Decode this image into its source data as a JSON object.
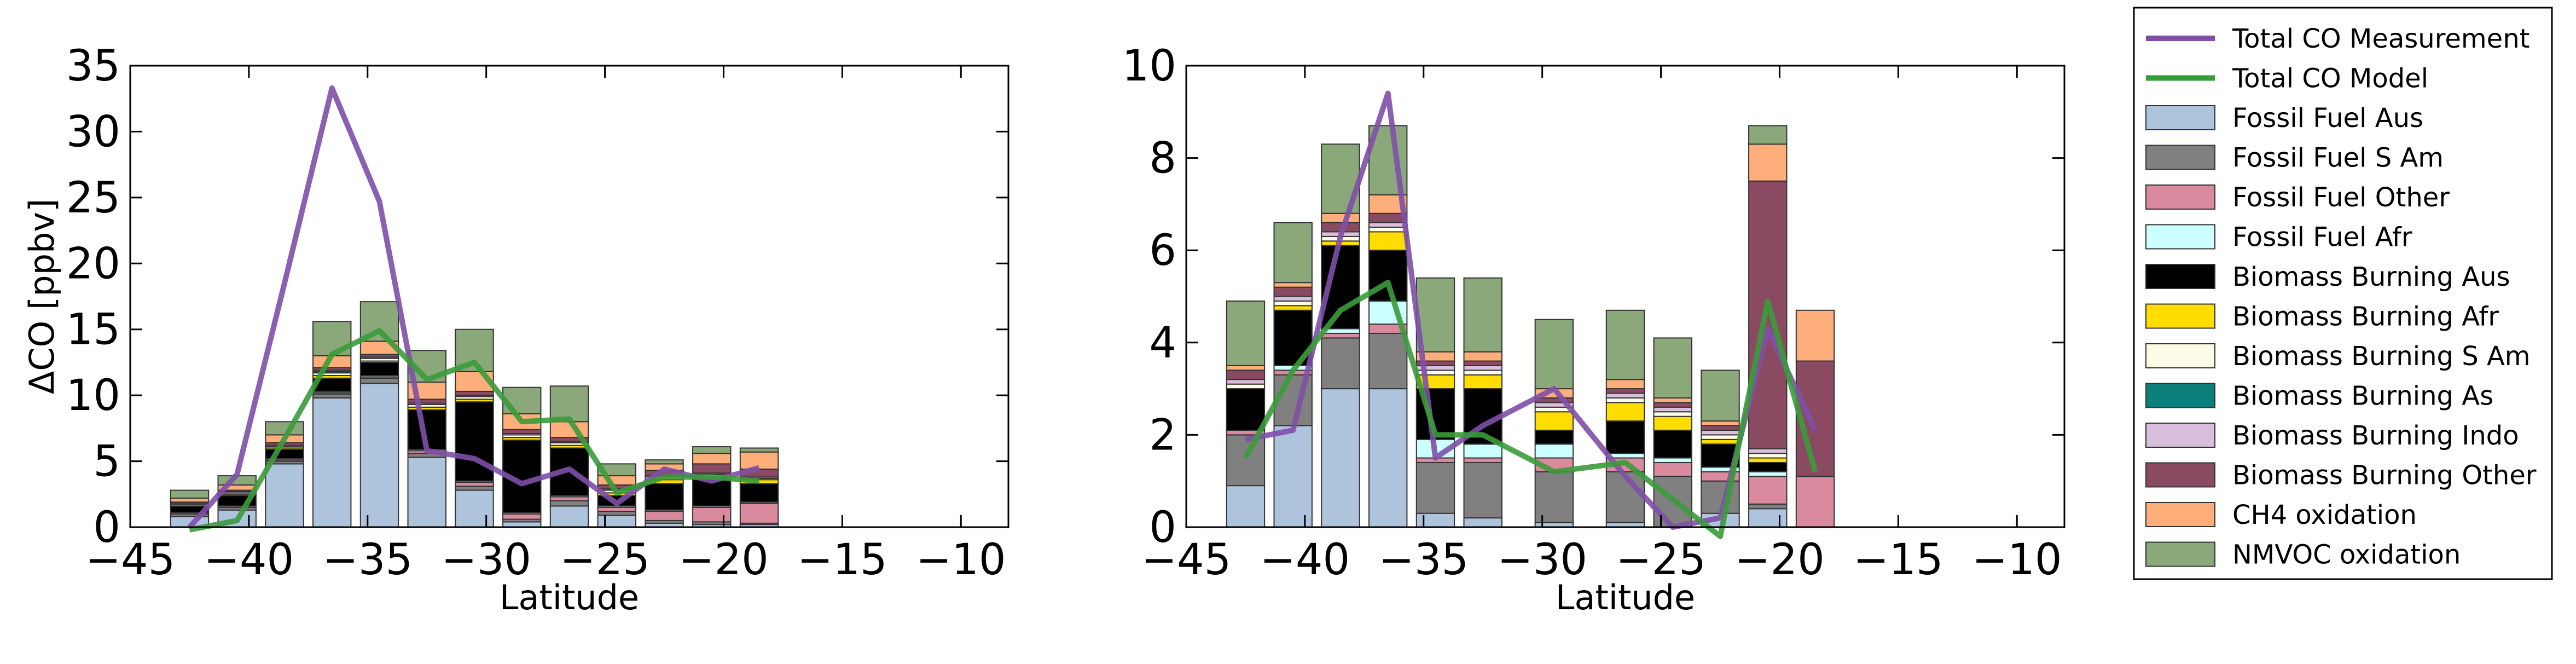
{
  "chart_data": [
    {
      "type": "bar",
      "xlabel": "Latitude",
      "ylabel": "ΔCO [ppbv]",
      "xlim": [
        -45,
        -8
      ],
      "ylim": [
        0,
        35
      ],
      "xticks": [
        "−45",
        "−40",
        "−35",
        "−30",
        "−25",
        "−20",
        "−15",
        "−10"
      ],
      "xtick_values": [
        -45,
        -40,
        -35,
        -30,
        -25,
        -20,
        -15,
        -10
      ],
      "yticks": [
        "0",
        "5",
        "10",
        "15",
        "20",
        "25",
        "30",
        "35"
      ],
      "ytick_values": [
        0,
        5,
        10,
        15,
        20,
        25,
        30,
        35
      ],
      "x": [
        -42.5,
        -40.5,
        -38.5,
        -36.5,
        -34.5,
        -32.5,
        -30.5,
        -28.5,
        -26.5,
        -24.5,
        -22.5,
        -20.5,
        -18.5
      ],
      "series": [
        {
          "name": "Fossil Fuel Aus",
          "values": [
            0.8,
            1.3,
            4.8,
            9.8,
            10.9,
            5.3,
            2.8,
            0.4,
            1.6,
            0.9,
            0.3,
            0.2,
            0.2
          ]
        },
        {
          "name": "Fossil Fuel S Am",
          "values": [
            0.2,
            0.2,
            0.2,
            0.3,
            0.4,
            0.3,
            0.3,
            0.2,
            0.4,
            0.3,
            0.2,
            0.2,
            0.1
          ]
        },
        {
          "name": "Fossil Fuel Other",
          "values": [
            0.1,
            0.1,
            0.1,
            0.1,
            0.1,
            0.2,
            0.3,
            0.4,
            0.3,
            0.3,
            0.7,
            1.1,
            1.5
          ]
        },
        {
          "name": "Fossil Fuel Afr",
          "values": [
            0.0,
            0.0,
            0.1,
            0.1,
            0.1,
            0.1,
            0.1,
            0.1,
            0.1,
            0.1,
            0.1,
            0.1,
            0.1
          ]
        },
        {
          "name": "Biomass Burning Aus",
          "values": [
            0.5,
            0.8,
            0.7,
            1.0,
            1.0,
            3.0,
            6.0,
            5.5,
            3.6,
            0.8,
            2.0,
            2.0,
            1.4
          ]
        },
        {
          "name": "Biomass Burning Afr",
          "values": [
            0.1,
            0.1,
            0.1,
            0.2,
            0.1,
            0.2,
            0.2,
            0.2,
            0.2,
            0.2,
            0.3,
            0.2,
            0.3
          ]
        },
        {
          "name": "Biomass Burning S Am",
          "values": [
            0.1,
            0.1,
            0.1,
            0.2,
            0.2,
            0.2,
            0.2,
            0.2,
            0.2,
            0.2,
            0.2,
            0.2,
            0.1
          ]
        },
        {
          "name": "Biomass Burning As",
          "values": [
            0.0,
            0.0,
            0.0,
            0.1,
            0.0,
            0.0,
            0.0,
            0.0,
            0.0,
            0.0,
            0.0,
            0.0,
            0.0
          ]
        },
        {
          "name": "Biomass Burning Indo",
          "values": [
            0.0,
            0.1,
            0.1,
            0.1,
            0.1,
            0.1,
            0.1,
            0.1,
            0.1,
            0.1,
            0.1,
            0.1,
            0.1
          ]
        },
        {
          "name": "Biomass Burning Other",
          "values": [
            0.1,
            0.1,
            0.2,
            0.2,
            0.2,
            0.3,
            0.3,
            0.3,
            0.3,
            0.3,
            0.4,
            0.7,
            0.6
          ]
        },
        {
          "name": "CH4 oxidation",
          "values": [
            0.3,
            0.4,
            0.6,
            0.9,
            1.0,
            1.3,
            1.5,
            1.2,
            1.2,
            0.7,
            0.5,
            0.8,
            1.3
          ]
        },
        {
          "name": "NMVOC oxidation",
          "values": [
            0.6,
            0.7,
            1.0,
            2.6,
            3.0,
            2.4,
            3.2,
            2.0,
            2.7,
            0.9,
            0.3,
            0.5,
            0.3
          ]
        }
      ],
      "lines": [
        {
          "name": "Total CO Measurement",
          "x": [
            -42.5,
            -40.5,
            -38.5,
            -36.5,
            -34.5,
            -32.5,
            -30.5,
            -28.5,
            -26.5,
            -24.5,
            -22.5,
            -20.5,
            -18.5
          ],
          "values": [
            0.0,
            4.0,
            18.5,
            33.3,
            24.7,
            5.8,
            5.2,
            3.3,
            4.4,
            1.8,
            4.4,
            3.5,
            4.5
          ]
        },
        {
          "name": "Total CO Model",
          "x": [
            -42.5,
            -40.5,
            -38.5,
            -36.5,
            -34.5,
            -32.5,
            -30.5,
            -28.5,
            -26.5,
            -24.5,
            -22.5,
            -20.5,
            -18.5
          ],
          "values": [
            -0.2,
            0.5,
            6.7,
            13.1,
            14.9,
            11.2,
            12.5,
            8.0,
            8.2,
            2.6,
            3.8,
            3.8,
            3.5
          ]
        }
      ]
    },
    {
      "type": "bar",
      "xlabel": "Latitude",
      "ylabel": "",
      "xlim": [
        -45,
        -8
      ],
      "ylim": [
        0,
        10
      ],
      "xticks": [
        "−45",
        "−40",
        "−35",
        "−30",
        "−25",
        "−20",
        "−15",
        "−10"
      ],
      "xtick_values": [
        -45,
        -40,
        -35,
        -30,
        -25,
        -20,
        -15,
        -10
      ],
      "yticks": [
        "0",
        "2",
        "4",
        "6",
        "8",
        "10"
      ],
      "ytick_values": [
        0,
        2,
        4,
        6,
        8,
        10
      ],
      "x": [
        -42.5,
        -40.5,
        -38.5,
        -36.5,
        -34.5,
        -32.5,
        -29.5,
        -26.5,
        -24.5,
        -22.5,
        -20.5,
        -18.5
      ],
      "series": [
        {
          "name": "Fossil Fuel Aus",
          "values": [
            0.9,
            2.2,
            3.0,
            3.0,
            0.3,
            0.2,
            0.1,
            0.1,
            0.0,
            0.3,
            0.4,
            0.0
          ]
        },
        {
          "name": "Fossil Fuel S Am",
          "values": [
            1.1,
            1.1,
            1.1,
            1.2,
            1.1,
            1.2,
            1.1,
            1.1,
            1.1,
            0.7,
            0.1,
            0.0
          ]
        },
        {
          "name": "Fossil Fuel Other",
          "values": [
            0.1,
            0.1,
            0.1,
            0.2,
            0.1,
            0.1,
            0.3,
            0.3,
            0.3,
            0.2,
            0.6,
            1.1
          ]
        },
        {
          "name": "Fossil Fuel Afr",
          "values": [
            0.0,
            0.1,
            0.1,
            0.5,
            0.4,
            0.3,
            0.3,
            0.1,
            0.1,
            0.1,
            0.1,
            0.0
          ]
        },
        {
          "name": "Biomass Burning Aus",
          "values": [
            0.9,
            1.2,
            1.8,
            1.1,
            1.1,
            1.2,
            0.3,
            0.7,
            0.6,
            0.5,
            0.2,
            0.0
          ]
        },
        {
          "name": "Biomass Burning Afr",
          "values": [
            0.0,
            0.1,
            0.1,
            0.4,
            0.3,
            0.3,
            0.4,
            0.4,
            0.3,
            0.1,
            0.1,
            0.0
          ]
        },
        {
          "name": "Biomass Burning S Am",
          "values": [
            0.1,
            0.1,
            0.1,
            0.1,
            0.1,
            0.1,
            0.1,
            0.1,
            0.1,
            0.1,
            0.1,
            0.0
          ]
        },
        {
          "name": "Biomass Burning As",
          "values": [
            0.0,
            0.0,
            0.0,
            0.0,
            0.0,
            0.0,
            0.0,
            0.0,
            0.0,
            0.0,
            0.0,
            0.0
          ]
        },
        {
          "name": "Biomass Burning Indo",
          "values": [
            0.1,
            0.1,
            0.1,
            0.1,
            0.1,
            0.1,
            0.1,
            0.1,
            0.1,
            0.1,
            0.1,
            0.0
          ]
        },
        {
          "name": "Biomass Burning Other",
          "values": [
            0.2,
            0.2,
            0.2,
            0.2,
            0.1,
            0.1,
            0.1,
            0.1,
            0.1,
            0.1,
            5.8,
            2.5
          ]
        },
        {
          "name": "CH4 oxidation",
          "values": [
            0.1,
            0.1,
            0.2,
            0.4,
            0.2,
            0.2,
            0.2,
            0.2,
            0.1,
            0.1,
            0.8,
            1.1
          ]
        },
        {
          "name": "NMVOC oxidation",
          "values": [
            1.4,
            1.3,
            1.5,
            1.5,
            1.6,
            1.6,
            1.5,
            1.5,
            1.3,
            1.1,
            0.4,
            0.0
          ]
        }
      ],
      "lines": [
        {
          "name": "Total CO Measurement",
          "x": [
            -42.5,
            -40.5,
            -38.5,
            -36.5,
            -34.5,
            -32.5,
            -29.5,
            -26.5,
            -24.5,
            -22.5,
            -20.5,
            -18.5
          ],
          "values": [
            1.9,
            2.1,
            6.3,
            9.4,
            1.5,
            2.2,
            3.0,
            1.1,
            0.0,
            0.2,
            4.3,
            2.1
          ]
        },
        {
          "name": "Total CO Model",
          "x": [
            -42.5,
            -40.5,
            -38.5,
            -36.5,
            -34.5,
            -32.5,
            -29.5,
            -26.5,
            -24.5,
            -22.5,
            -20.5,
            -18.5
          ],
          "values": [
            1.5,
            3.4,
            4.7,
            5.3,
            2.0,
            2.0,
            1.2,
            1.4,
            0.6,
            -0.2,
            4.9,
            1.2
          ]
        }
      ]
    }
  ],
  "legend": {
    "position": "right",
    "entries": [
      {
        "label": "Total CO Measurement",
        "kind": "line",
        "color": "#7f4fa8"
      },
      {
        "label": "Total CO Model",
        "kind": "line",
        "color": "#3a9b3a"
      },
      {
        "label": "Fossil Fuel Aus",
        "kind": "bar",
        "color": "#aec4dd"
      },
      {
        "label": "Fossil Fuel S Am",
        "kind": "bar",
        "color": "#808080"
      },
      {
        "label": "Fossil Fuel Other",
        "kind": "bar",
        "color": "#d98a9e"
      },
      {
        "label": "Fossil Fuel Afr",
        "kind": "bar",
        "color": "#ccffff"
      },
      {
        "label": "Biomass Burning Aus",
        "kind": "bar",
        "color": "#000000"
      },
      {
        "label": "Biomass Burning Afr",
        "kind": "bar",
        "color": "#ffdd00"
      },
      {
        "label": "Biomass Burning S Am",
        "kind": "bar",
        "color": "#fcfce6"
      },
      {
        "label": "Biomass Burning As",
        "kind": "bar",
        "color": "#0d7f7a"
      },
      {
        "label": "Biomass Burning Indo",
        "kind": "bar",
        "color": "#d8c0dd"
      },
      {
        "label": "Biomass Burning Other",
        "kind": "bar",
        "color": "#8a4a62"
      },
      {
        "label": "CH4 oxidation",
        "kind": "bar",
        "color": "#fdae7b"
      },
      {
        "label": "NMVOC oxidation",
        "kind": "bar",
        "color": "#8aa87a"
      }
    ]
  }
}
